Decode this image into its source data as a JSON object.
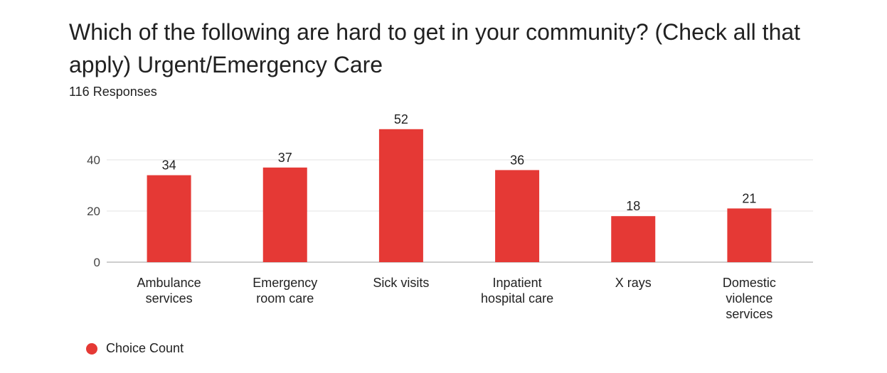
{
  "chart_data": {
    "type": "bar",
    "title": "Which of the following are hard to get in your community? (Check all that apply) Urgent/Emergency Care",
    "subtitle": "116 Responses",
    "categories": [
      [
        "Ambulance",
        "services"
      ],
      [
        "Emergency",
        "room care"
      ],
      [
        "Sick visits"
      ],
      [
        "Inpatient",
        "hospital care"
      ],
      [
        "X rays"
      ],
      [
        "Domestic",
        "violence",
        "services"
      ]
    ],
    "series": [
      {
        "name": "Choice Count",
        "values": [
          34,
          37,
          52,
          36,
          18,
          21
        ],
        "color": "#e53935"
      }
    ],
    "yticks": [
      "0",
      "20",
      "40"
    ],
    "ylim": [
      0,
      60
    ],
    "grid": true,
    "legend_position": "bottom-left"
  }
}
